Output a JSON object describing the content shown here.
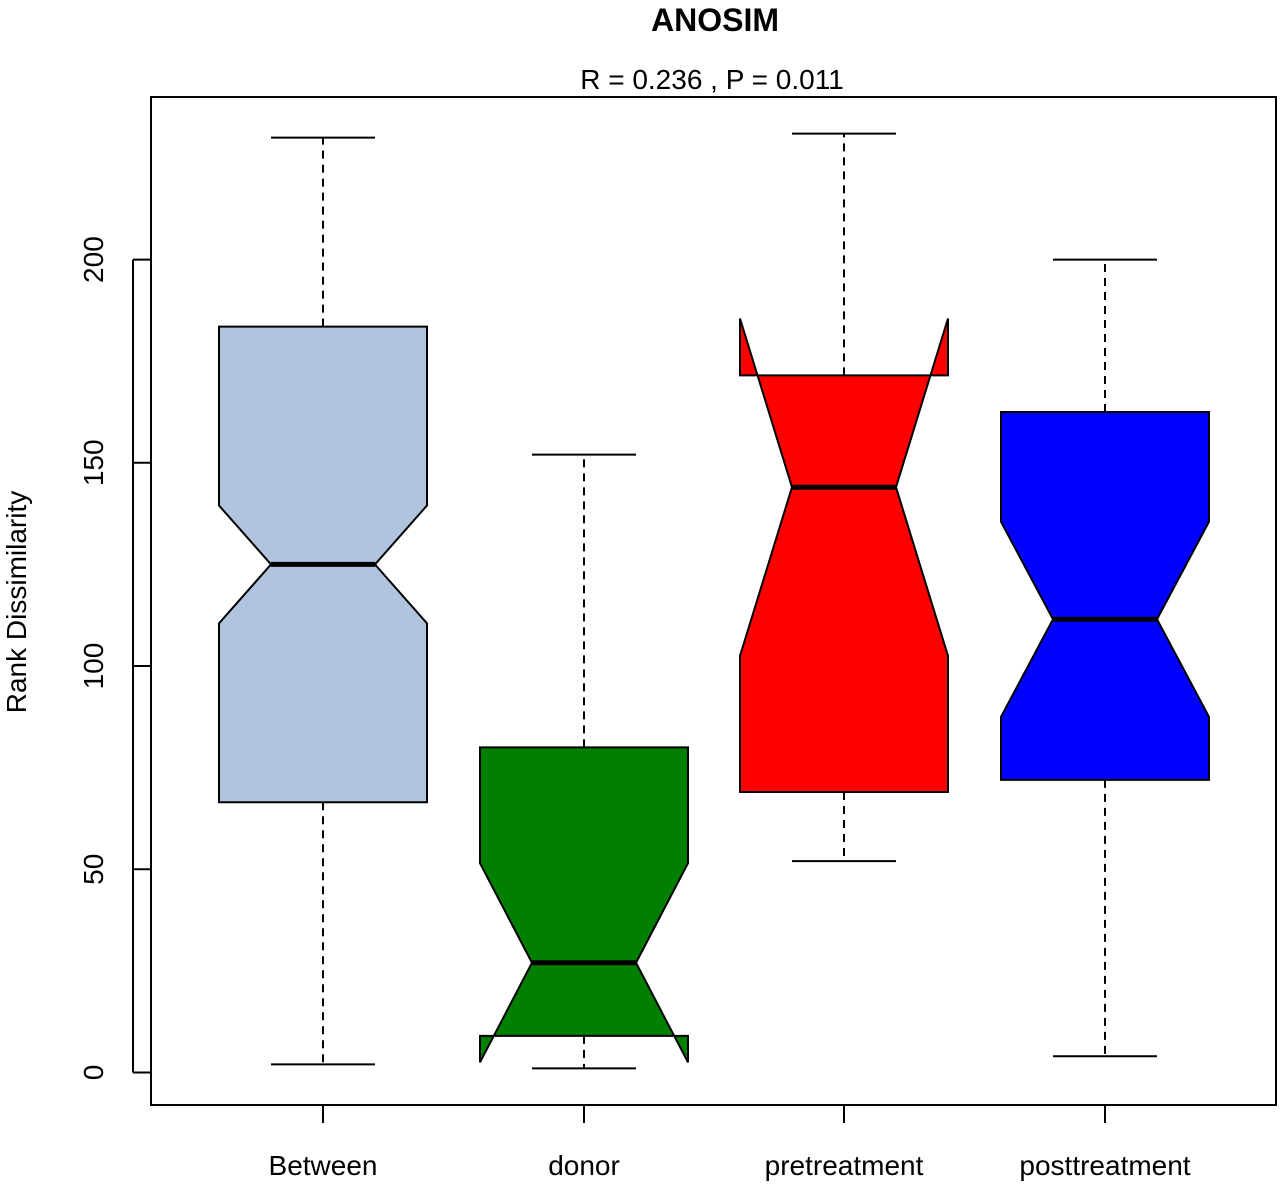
{
  "chart_data": {
    "type": "boxplot",
    "title": "ANOSIM",
    "subtitle": "R =  0.236 ,  P =  0.011",
    "xlabel": "",
    "ylabel": "Rank Dissimilarity",
    "ylim": [
      -8,
      240
    ],
    "yticks": [
      0,
      50,
      100,
      150,
      200
    ],
    "notched": true,
    "grid": false,
    "legend": "none",
    "categories": [
      "Between",
      "donor",
      "pretreatment",
      "posttreatment"
    ],
    "boxes": [
      {
        "category": "Between",
        "color": "#b0c4de",
        "whisker_low": 2,
        "q1": 66.5,
        "notch_low": 110.5,
        "median": 125,
        "notch_high": 139.5,
        "q3": 183.5,
        "whisker_high": 230
      },
      {
        "category": "donor",
        "color": "#007f00",
        "whisker_low": 1,
        "q1": 9,
        "notch_low": 2.5,
        "median": 27,
        "notch_high": 51.5,
        "q3": 80,
        "whisker_high": 152
      },
      {
        "category": "pretreatment",
        "color": "#ff0000",
        "whisker_low": 52,
        "q1": 69,
        "notch_low": 102.5,
        "median": 144,
        "notch_high": 185.5,
        "q3": 171.5,
        "whisker_high": 231
      },
      {
        "category": "posttreatment",
        "color": "#0000ff",
        "whisker_low": 4,
        "q1": 72,
        "notch_low": 87.5,
        "median": 111.5,
        "notch_high": 135.5,
        "q3": 162.5,
        "whisker_high": 200
      }
    ]
  }
}
